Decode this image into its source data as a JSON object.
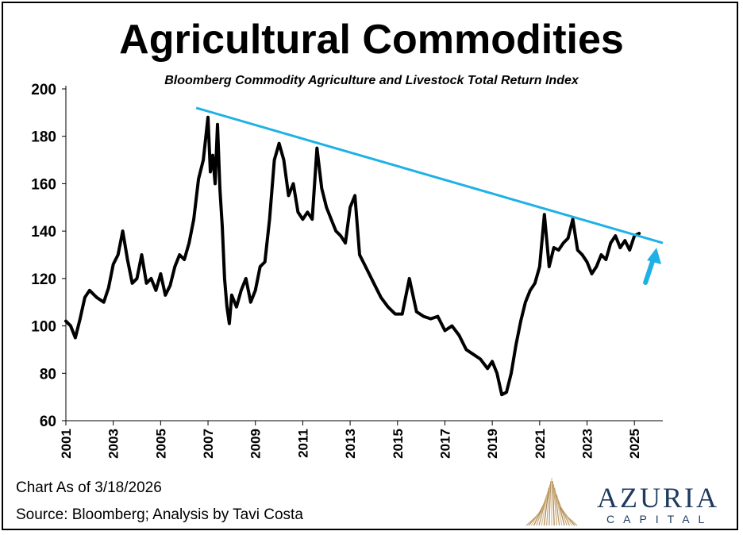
{
  "title": "Agricultural Commodities",
  "subtitle": "Bloomberg Commodity Agriculture and Livestock Total Return Index",
  "footer": {
    "chart_date": "Chart As of 3/18/2026",
    "source": "Source: Bloomberg; Analysis by Tavi Costa"
  },
  "logo": {
    "name": "AZURIA",
    "sub": "CAPITAL"
  },
  "colors": {
    "series": "#000000",
    "trendline": "#1fb1e6",
    "arrow": "#1fb1e6",
    "logo": "#1e3a5f"
  },
  "chart_data": {
    "type": "line",
    "title": "Agricultural Commodities",
    "subtitle": "Bloomberg Commodity Agriculture and Livestock Total Return Index",
    "xlabel": "",
    "ylabel": "",
    "xlim": [
      2001,
      2026.2
    ],
    "ylim": [
      60,
      200
    ],
    "y_ticks": [
      "60",
      "80",
      "100",
      "120",
      "140",
      "160",
      "180",
      "200"
    ],
    "x_ticks": [
      "2001",
      "2003",
      "2005",
      "2007",
      "2009",
      "2011",
      "2013",
      "2015",
      "2017",
      "2019",
      "2021",
      "2023",
      "2025"
    ],
    "grid": false,
    "legend": "none",
    "series": [
      {
        "x": [
          2001.0,
          2001.2,
          2001.4,
          2001.6,
          2001.8,
          2002.0,
          2002.3,
          2002.6,
          2002.8,
          2003.0,
          2003.2,
          2003.4,
          2003.6,
          2003.8,
          2004.0,
          2004.2,
          2004.4,
          2004.6,
          2004.8,
          2005.0,
          2005.2,
          2005.4,
          2005.6,
          2005.8,
          2006.0,
          2006.2,
          2006.4,
          2006.6,
          2006.8,
          2007.0,
          2007.1,
          2007.2,
          2007.3,
          2007.4,
          2007.5,
          2007.6,
          2007.7,
          2007.8,
          2007.9,
          2008.0,
          2008.2,
          2008.4,
          2008.6,
          2008.8,
          2009.0,
          2009.2,
          2009.4,
          2009.6,
          2009.8,
          2010.0,
          2010.2,
          2010.4,
          2010.6,
          2010.8,
          2011.0,
          2011.2,
          2011.4,
          2011.6,
          2011.8,
          2012.0,
          2012.2,
          2012.4,
          2012.6,
          2012.8,
          2013.0,
          2013.2,
          2013.4,
          2013.6,
          2013.8,
          2014.0,
          2014.3,
          2014.6,
          2014.9,
          2015.2,
          2015.5,
          2015.8,
          2016.1,
          2016.4,
          2016.7,
          2017.0,
          2017.3,
          2017.6,
          2017.9,
          2018.2,
          2018.5,
          2018.8,
          2019.0,
          2019.2,
          2019.4,
          2019.6,
          2019.8,
          2020.0,
          2020.2,
          2020.4,
          2020.6,
          2020.8,
          2021.0,
          2021.2,
          2021.4,
          2021.6,
          2021.8,
          2022.0,
          2022.2,
          2022.4,
          2022.6,
          2022.8,
          2023.0,
          2023.2,
          2023.4,
          2023.6,
          2023.8,
          2024.0,
          2024.2,
          2024.4,
          2024.6,
          2024.8,
          2025.0,
          2025.2
        ],
        "values": [
          102,
          100,
          95,
          103,
          112,
          115,
          112,
          110,
          116,
          126,
          130,
          140,
          128,
          118,
          120,
          130,
          118,
          120,
          115,
          122,
          113,
          117,
          125,
          130,
          128,
          135,
          145,
          162,
          170,
          188,
          165,
          172,
          160,
          185,
          158,
          142,
          120,
          108,
          101,
          113,
          108,
          115,
          120,
          110,
          115,
          125,
          127,
          145,
          170,
          177,
          170,
          155,
          160,
          148,
          145,
          148,
          145,
          175,
          158,
          150,
          145,
          140,
          138,
          135,
          150,
          155,
          130,
          126,
          122,
          118,
          112,
          108,
          105,
          105,
          120,
          106,
          104,
          103,
          104,
          98,
          100,
          96,
          90,
          88,
          86,
          82,
          85,
          80,
          71,
          72,
          80,
          92,
          102,
          110,
          115,
          118,
          125,
          147,
          125,
          133,
          132,
          135,
          137,
          145,
          132,
          130,
          127,
          122,
          125,
          130,
          128,
          135,
          138,
          133,
          136,
          132,
          138,
          139
        ]
      }
    ],
    "trendline": {
      "x": [
        2006.5,
        2026.2
      ],
      "y": [
        192,
        135
      ]
    },
    "annotation": {
      "type": "arrow",
      "direction": "up-right",
      "at": 2025.6
    }
  }
}
